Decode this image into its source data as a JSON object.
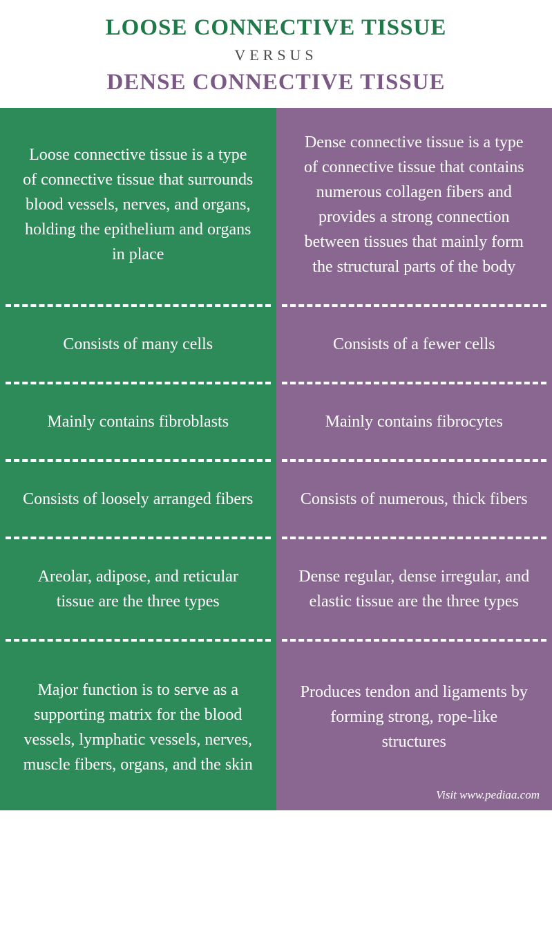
{
  "header": {
    "title_left": "LOOSE CONNECTIVE TISSUE",
    "versus": "VERSUS",
    "title_right": "DENSE CONNECTIVE TISSUE"
  },
  "colors": {
    "green": "#2d8b5a",
    "purple": "#8a6791",
    "versus_text": "#4a4a4a",
    "title_left_color": "#1f7a4a",
    "title_right_color": "#7a5a84"
  },
  "typography": {
    "title_fontsize": "33px",
    "versus_fontsize": "22px",
    "cell_fontsize": "24px",
    "visit_fontsize": "17px"
  },
  "row_heights": [
    "280px",
    "100px",
    "100px",
    "100px",
    "136px",
    "240px"
  ],
  "rows": [
    {
      "left": "Loose connective tissue is a type of connective tissue that surrounds blood vessels, nerves, and organs, holding the epithelium and organs in place",
      "right": "Dense connective tissue is a type of connective tissue that contains numerous collagen fibers and provides a strong connection between tissues that mainly form the structural parts of the body"
    },
    {
      "left": "Consists of many cells",
      "right": "Consists of a fewer cells"
    },
    {
      "left": "Mainly contains fibroblasts",
      "right": "Mainly contains fibrocytes"
    },
    {
      "left": "Consists of loosely arranged fibers",
      "right": "Consists of numerous, thick fibers"
    },
    {
      "left": "Areolar, adipose, and reticular tissue are the three types",
      "right": "Dense regular, dense irregular, and elastic tissue are the three types"
    },
    {
      "left": "Major function is to serve as a supporting matrix for the blood vessels, lymphatic vessels, nerves, muscle fibers, organs, and the skin",
      "right": "Produces tendon and ligaments by forming strong, rope-like structures"
    }
  ],
  "footer": {
    "visit": "Visit www.pediaa.com"
  }
}
